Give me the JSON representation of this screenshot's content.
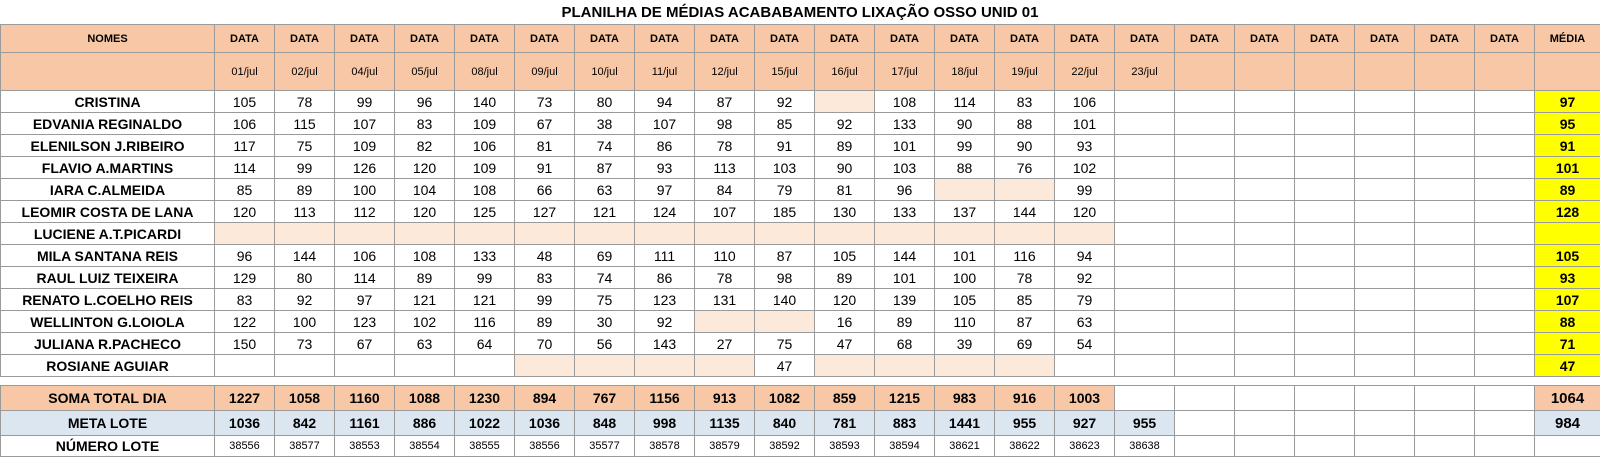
{
  "title": "PLANILHA DE MÉDIAS ACABABAMENTO LIXAÇÃO OSSO UNID 01",
  "headers": {
    "name": "NOMES",
    "data_labels": [
      "DATA",
      "DATA",
      "DATA",
      "DATA",
      "DATA",
      "DATA",
      "DATA",
      "DATA",
      "DATA",
      "DATA",
      "DATA",
      "DATA",
      "DATA",
      "DATA",
      "DATA",
      "DATA",
      "DATA",
      "DATA",
      "DATA",
      "DATA",
      "DATA",
      "DATA"
    ],
    "average": "MÉDIA",
    "dates": [
      "01/jul",
      "02/jul",
      "04/jul",
      "05/jul",
      "08/jul",
      "09/jul",
      "10/jul",
      "11/jul",
      "12/jul",
      "15/jul",
      "16/jul",
      "17/jul",
      "18/jul",
      "19/jul",
      "22/jul",
      "23/jul",
      "",
      "",
      "",
      "",
      "",
      ""
    ]
  },
  "rows": [
    {
      "name": "CRISTINA",
      "values": [
        "105",
        "78",
        "99",
        "96",
        "140",
        "73",
        "80",
        "94",
        "87",
        "92",
        "",
        "108",
        "114",
        "83",
        "106",
        "",
        "",
        "",
        "",
        "",
        "",
        ""
      ],
      "blank": [
        10
      ],
      "average": "97"
    },
    {
      "name": "EDVANIA REGINALDO",
      "values": [
        "106",
        "115",
        "107",
        "83",
        "109",
        "67",
        "38",
        "107",
        "98",
        "85",
        "92",
        "133",
        "90",
        "88",
        "101",
        "",
        "",
        "",
        "",
        "",
        "",
        ""
      ],
      "blank": [],
      "average": "95"
    },
    {
      "name": "ELENILSON J.RIBEIRO",
      "values": [
        "117",
        "75",
        "109",
        "82",
        "106",
        "81",
        "74",
        "86",
        "78",
        "91",
        "89",
        "101",
        "99",
        "90",
        "93",
        "",
        "",
        "",
        "",
        "",
        "",
        ""
      ],
      "blank": [],
      "average": "91"
    },
    {
      "name": "FLAVIO A.MARTINS",
      "values": [
        "114",
        "99",
        "126",
        "120",
        "109",
        "91",
        "87",
        "93",
        "113",
        "103",
        "90",
        "103",
        "88",
        "76",
        "102",
        "",
        "",
        "",
        "",
        "",
        "",
        ""
      ],
      "blank": [],
      "average": "101"
    },
    {
      "name": "IARA C.ALMEIDA",
      "values": [
        "85",
        "89",
        "100",
        "104",
        "108",
        "66",
        "63",
        "97",
        "84",
        "79",
        "81",
        "96",
        "",
        "",
        "99",
        "",
        "",
        "",
        "",
        "",
        "",
        ""
      ],
      "blank": [
        12,
        13
      ],
      "average": "89"
    },
    {
      "name": "LEOMIR COSTA DE LANA",
      "values": [
        "120",
        "113",
        "112",
        "120",
        "125",
        "127",
        "121",
        "124",
        "107",
        "185",
        "130",
        "133",
        "137",
        "144",
        "120",
        "",
        "",
        "",
        "",
        "",
        "",
        ""
      ],
      "blank": [],
      "average": "128"
    },
    {
      "name": "LUCIENE A.T.PICARDI",
      "values": [
        "",
        "",
        "",
        "",
        "",
        "",
        "",
        "",
        "",
        "",
        "",
        "",
        "",
        "",
        "",
        "",
        "",
        "",
        "",
        "",
        "",
        ""
      ],
      "blank": [
        0,
        1,
        2,
        3,
        4,
        5,
        6,
        7,
        8,
        9,
        10,
        11,
        12,
        13,
        14
      ],
      "average": ""
    },
    {
      "name": "MILA SANTANA REIS",
      "values": [
        "96",
        "144",
        "106",
        "108",
        "133",
        "48",
        "69",
        "111",
        "110",
        "87",
        "105",
        "144",
        "101",
        "116",
        "94",
        "",
        "",
        "",
        "",
        "",
        "",
        ""
      ],
      "blank": [],
      "average": "105"
    },
    {
      "name": "RAUL LUIZ TEIXEIRA",
      "values": [
        "129",
        "80",
        "114",
        "89",
        "99",
        "83",
        "74",
        "86",
        "78",
        "98",
        "89",
        "101",
        "100",
        "78",
        "92",
        "",
        "",
        "",
        "",
        "",
        "",
        ""
      ],
      "blank": [],
      "average": "93"
    },
    {
      "name": "RENATO L.COELHO REIS",
      "values": [
        "83",
        "92",
        "97",
        "121",
        "121",
        "99",
        "75",
        "123",
        "131",
        "140",
        "120",
        "139",
        "105",
        "85",
        "79",
        "",
        "",
        "",
        "",
        "",
        "",
        ""
      ],
      "blank": [],
      "average": "107"
    },
    {
      "name": "WELLINTON G.LOIOLA",
      "values": [
        "122",
        "100",
        "123",
        "102",
        "116",
        "89",
        "30",
        "92",
        "",
        "",
        "16",
        "89",
        "110",
        "87",
        "63",
        "",
        "",
        "",
        "",
        "",
        "",
        ""
      ],
      "blank": [
        8,
        9
      ],
      "average": "88"
    },
    {
      "name": "JULIANA R.PACHECO",
      "values": [
        "150",
        "73",
        "67",
        "63",
        "64",
        "70",
        "56",
        "143",
        "27",
        "75",
        "47",
        "68",
        "39",
        "69",
        "54",
        "",
        "",
        "",
        "",
        "",
        "",
        ""
      ],
      "blank": [],
      "average": "71"
    },
    {
      "name": "ROSIANE AGUIAR",
      "values": [
        "",
        "",
        "",
        "",
        "",
        "",
        "",
        "",
        "",
        "47",
        "",
        "",
        "",
        "",
        "",
        "",
        "",
        "",
        "",
        "",
        "",
        ""
      ],
      "blank": [
        5,
        6,
        7,
        8,
        10,
        11,
        12,
        13
      ],
      "average": "47"
    }
  ],
  "soma": {
    "label": "SOMA TOTAL DIA",
    "values": [
      "1227",
      "1058",
      "1160",
      "1088",
      "1230",
      "894",
      "767",
      "1156",
      "913",
      "1082",
      "859",
      "1215",
      "983",
      "916",
      "1003",
      "",
      "",
      "",
      "",
      "",
      "",
      ""
    ],
    "total": "1064"
  },
  "meta": {
    "label": "META LOTE",
    "values": [
      "1036",
      "842",
      "1161",
      "886",
      "1022",
      "1036",
      "848",
      "998",
      "1135",
      "840",
      "781",
      "883",
      "1441",
      "955",
      "927",
      "955",
      "",
      "",
      "",
      "",
      "",
      ""
    ],
    "total": "984"
  },
  "lote": {
    "label": "NÚMERO LOTE",
    "values": [
      "38556",
      "38577",
      "38553",
      "38554",
      "38555",
      "38556",
      "35577",
      "38578",
      "38579",
      "38592",
      "38593",
      "38594",
      "38621",
      "38622",
      "38623",
      "38638",
      "",
      "",
      "",
      "",
      "",
      ""
    ],
    "total": ""
  },
  "colors": {
    "header_orange": "#f8c8a6",
    "blank_peach": "#fde9d9",
    "average_yellow": "#ffff00",
    "meta_blue": "#dce6f1"
  }
}
